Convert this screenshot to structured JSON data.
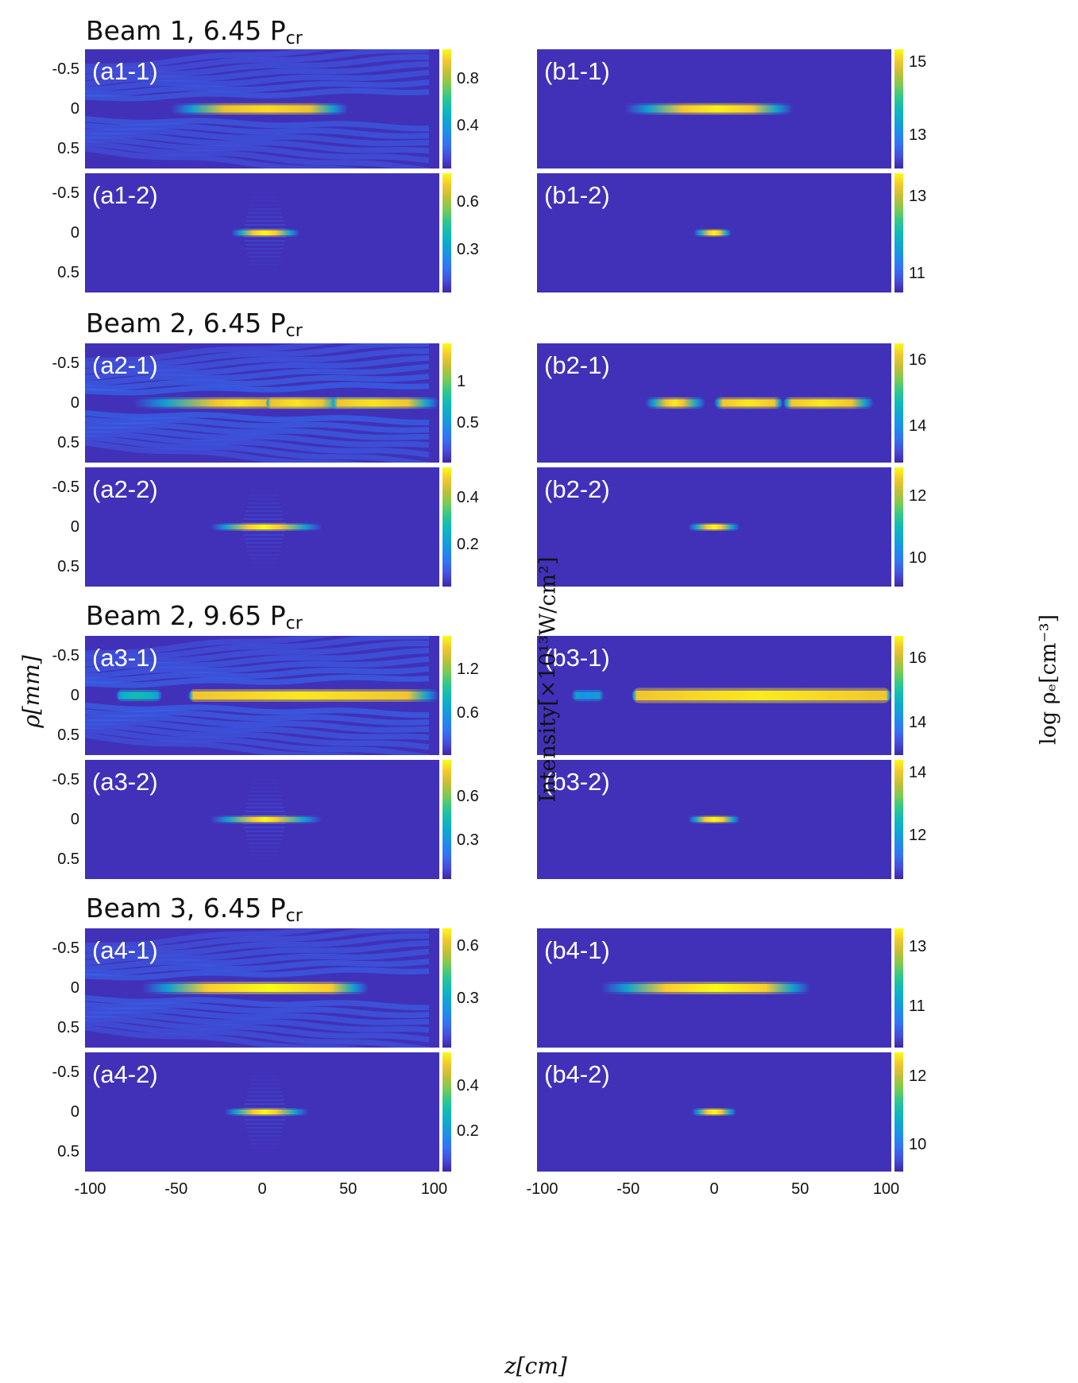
{
  "chart_data": {
    "type": "heatmap",
    "title": "",
    "xlabel": "z[cm]",
    "ylabel_left": "ρ[mm]",
    "colorbar_label_intensity": "Intensity[×10¹³W/cm²]",
    "colorbar_label_density": "log ρₑ[cm⁻³]",
    "x_ticks": [
      "-100",
      "-50",
      "0",
      "50",
      "100"
    ],
    "y_ticks": [
      "-0.5",
      "0",
      "0.5"
    ],
    "xlim": [
      -103,
      103
    ],
    "ylim": [
      -0.75,
      0.75
    ],
    "colormap": "parula",
    "groups": [
      {
        "title": "Beam 1, 6.45 P",
        "title_sub": "cr",
        "panels": [
          {
            "id": "a1-1",
            "label": "(a1-1)",
            "cbar_ticks": [
              "0.8",
              "0.4"
            ],
            "cbar_range": [
              0.03,
              1.05
            ],
            "cbar_tick_values": [
              0.8,
              0.4
            ],
            "filaments": [
              {
                "z0": -53,
                "z1": 50,
                "core_z0": -22,
                "core_z1": 28,
                "peak": 1.0,
                "width": 0.045,
                "uniform": true
              }
            ],
            "rings": 0.13,
            "background": "diffraction"
          },
          {
            "id": "a1-2",
            "label": "(a1-2)",
            "cbar_ticks": [
              "0.6",
              "0.3"
            ],
            "cbar_range": [
              0.03,
              0.78
            ],
            "cbar_tick_values": [
              0.6,
              0.3
            ],
            "filaments": [
              {
                "z0": -18,
                "z1": 22,
                "core_z0": -5,
                "core_z1": 8,
                "peak": 0.78,
                "width": 0.03
              }
            ],
            "rings": 0.06,
            "background": "striations"
          },
          {
            "id": "b1-1",
            "label": "(b1-1)",
            "cbar_ticks": [
              "15",
              "13"
            ],
            "cbar_range": [
              12.1,
              15.35
            ],
            "cbar_tick_values": [
              15,
              13
            ],
            "filaments": [
              {
                "z0": -52,
                "z1": 46,
                "core_z0": -18,
                "core_z1": 22,
                "peak": 15.3,
                "width": 0.045,
                "uniform": true
              }
            ]
          },
          {
            "id": "b1-2",
            "label": "(b1-2)",
            "cbar_ticks": [
              "13",
              "11"
            ],
            "cbar_range": [
              10.5,
              13.6
            ],
            "cbar_tick_values": [
              13,
              11
            ],
            "filaments": [
              {
                "z0": -12,
                "z1": 10,
                "core_z0": -3,
                "core_z1": 3,
                "peak": 13.6,
                "width": 0.028
              }
            ]
          }
        ]
      },
      {
        "title": "Beam 2, 6.45 P",
        "title_sub": "cr",
        "panels": [
          {
            "id": "a2-1",
            "label": "(a2-1)",
            "cbar_ticks": [
              "1",
              "0.5"
            ],
            "cbar_range": [
              0.03,
              1.45
            ],
            "cbar_tick_values": [
              1,
              0.5
            ],
            "filaments": [
              {
                "z0": -75,
                "z1": 103,
                "core_z0": -28,
                "core_z1": 2,
                "peak": 1.4,
                "width": 0.045
              },
              {
                "z0": 2,
                "z1": 48,
                "core_z0": 5,
                "core_z1": 35,
                "peak": 1.4,
                "width": 0.045
              },
              {
                "z0": 40,
                "z1": 103,
                "core_z0": 44,
                "core_z1": 85,
                "peak": 1.4,
                "width": 0.045
              }
            ],
            "rings": 0.2,
            "background": "diffraction"
          },
          {
            "id": "a2-2",
            "label": "(a2-2)",
            "cbar_ticks": [
              "0.4",
              "0.2"
            ],
            "cbar_range": [
              0.02,
              0.53
            ],
            "cbar_tick_values": [
              0.4,
              0.2
            ],
            "filaments": [
              {
                "z0": -30,
                "z1": 35,
                "core_z0": -8,
                "core_z1": 10,
                "peak": 0.53,
                "width": 0.03
              }
            ],
            "rings": 0.06,
            "background": "striations"
          },
          {
            "id": "b2-1",
            "label": "(b2-1)",
            "cbar_ticks": [
              "16",
              "14"
            ],
            "cbar_range": [
              12.9,
              16.5
            ],
            "cbar_tick_values": [
              16,
              14
            ],
            "filaments": [
              {
                "z0": -40,
                "z1": -5,
                "core_z0": -28,
                "core_z1": -18,
                "peak": 16.4,
                "width": 0.045
              },
              {
                "z0": 0,
                "z1": 40,
                "core_z0": 5,
                "core_z1": 35,
                "peak": 16.4,
                "width": 0.045
              },
              {
                "z0": 40,
                "z1": 93,
                "core_z0": 45,
                "core_z1": 80,
                "peak": 16.4,
                "width": 0.045
              }
            ]
          },
          {
            "id": "b2-2",
            "label": "(b2-2)",
            "cbar_ticks": [
              "12",
              "10"
            ],
            "cbar_range": [
              9.1,
              12.9
            ],
            "cbar_tick_values": [
              12,
              10
            ],
            "filaments": [
              {
                "z0": -15,
                "z1": 15,
                "core_z0": -4,
                "core_z1": 4,
                "peak": 12.9,
                "width": 0.03
              }
            ]
          }
        ]
      },
      {
        "title": "Beam 2, 9.65 P",
        "title_sub": "cr",
        "panels": [
          {
            "id": "a3-1",
            "label": "(a3-1)",
            "cbar_ticks": [
              "1.2",
              "0.6"
            ],
            "cbar_range": [
              0.03,
              1.65
            ],
            "cbar_tick_values": [
              1.2,
              0.6
            ],
            "filaments": [
              {
                "z0": -85,
                "z1": -58,
                "core_z0": -80,
                "core_z1": -65,
                "peak": 0.85,
                "width": 0.045
              },
              {
                "z0": -43,
                "z1": 103,
                "core_z0": -40,
                "core_z1": 85,
                "peak": 1.6,
                "width": 0.05
              }
            ],
            "rings": 0.18,
            "background": "diffraction"
          },
          {
            "id": "a3-2",
            "label": "(a3-2)",
            "cbar_ticks": [
              "0.6",
              "0.3"
            ],
            "cbar_range": [
              0.03,
              0.85
            ],
            "cbar_tick_values": [
              0.6,
              0.3
            ],
            "filaments": [
              {
                "z0": -30,
                "z1": 35,
                "core_z0": -5,
                "core_z1": 8,
                "peak": 0.85,
                "width": 0.03
              }
            ],
            "rings": 0.06,
            "background": "striations"
          },
          {
            "id": "b3-1",
            "label": "(b3-1)",
            "cbar_ticks": [
              "16",
              "14"
            ],
            "cbar_range": [
              13.0,
              16.7
            ],
            "cbar_tick_values": [
              16,
              14
            ],
            "filaments": [
              {
                "z0": -83,
                "z1": -64,
                "core_z0": -76,
                "core_z1": -71,
                "peak": 14.3,
                "width": 0.045
              },
              {
                "z0": -48,
                "z1": 103,
                "core_z0": -45,
                "core_z1": 100,
                "peak": 16.6,
                "width": 0.06,
                "uniform": true
              }
            ]
          },
          {
            "id": "b3-2",
            "label": "(b3-2)",
            "cbar_ticks": [
              "14",
              "12"
            ],
            "cbar_range": [
              10.6,
              14.4
            ],
            "cbar_tick_values": [
              14,
              12
            ],
            "filaments": [
              {
                "z0": -15,
                "z1": 15,
                "core_z0": -5,
                "core_z1": 5,
                "peak": 14.4,
                "width": 0.03
              }
            ]
          }
        ]
      },
      {
        "title": "Beam 3, 6.45 P",
        "title_sub": "cr",
        "panels": [
          {
            "id": "a4-1",
            "label": "(a4-1)",
            "cbar_ticks": [
              "0.6",
              "0.3"
            ],
            "cbar_range": [
              0.02,
              0.7
            ],
            "cbar_tick_values": [
              0.6,
              0.3
            ],
            "filaments": [
              {
                "z0": -70,
                "z1": 62,
                "core_z0": -32,
                "core_z1": 40,
                "peak": 0.7,
                "width": 0.05,
                "uniform": true
              }
            ],
            "rings": 0.15,
            "background": "diffraction"
          },
          {
            "id": "a4-2",
            "label": "(a4-2)",
            "cbar_ticks": [
              "0.4",
              "0.2"
            ],
            "cbar_range": [
              0.02,
              0.55
            ],
            "cbar_tick_values": [
              0.4,
              0.2
            ],
            "filaments": [
              {
                "z0": -22,
                "z1": 27,
                "core_z0": -5,
                "core_z1": 8,
                "peak": 0.55,
                "width": 0.03
              }
            ],
            "rings": 0.06,
            "background": "striations"
          },
          {
            "id": "b4-1",
            "label": "(b4-1)",
            "cbar_ticks": [
              "13",
              "11"
            ],
            "cbar_range": [
              9.6,
              13.6
            ],
            "cbar_tick_values": [
              13,
              11
            ],
            "filaments": [
              {
                "z0": -66,
                "z1": 56,
                "core_z0": -28,
                "core_z1": 30,
                "peak": 13.6,
                "width": 0.05,
                "uniform": true
              }
            ]
          },
          {
            "id": "b4-2",
            "label": "(b4-2)",
            "cbar_ticks": [
              "12",
              "10"
            ],
            "cbar_range": [
              9.2,
              12.7
            ],
            "cbar_tick_values": [
              12,
              10
            ],
            "filaments": [
              {
                "z0": -13,
                "z1": 13,
                "core_z0": -4,
                "core_z1": 4,
                "peak": 12.7,
                "width": 0.03
              }
            ]
          }
        ]
      }
    ]
  }
}
